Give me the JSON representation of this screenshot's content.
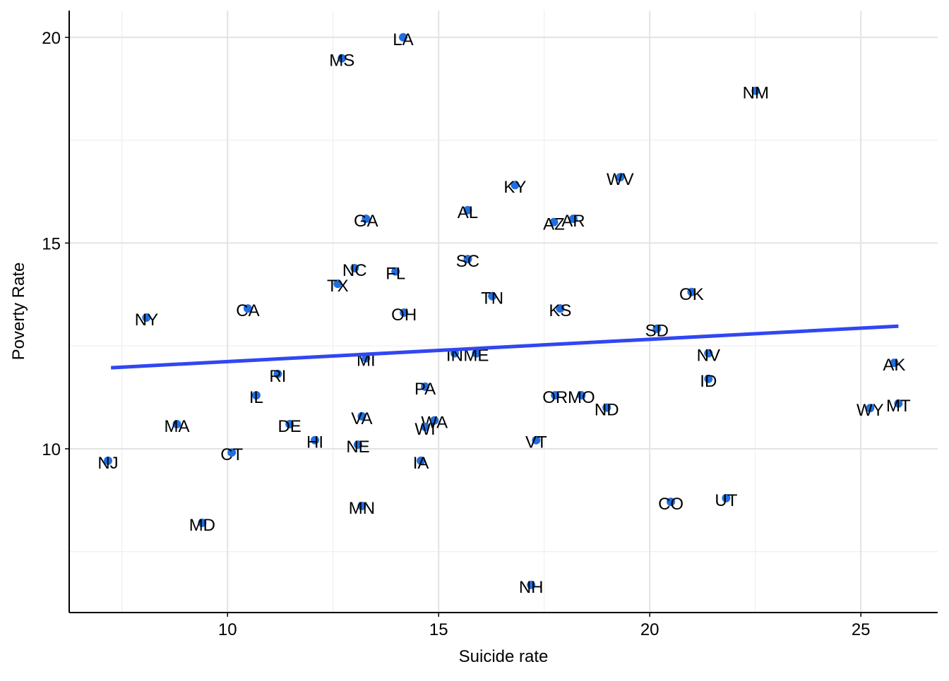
{
  "chart_data": {
    "type": "scatter",
    "x_label": "Suicide rate",
    "y_label": "Poverty Rate",
    "xlim": [
      6.25,
      26.82
    ],
    "ylim": [
      6.02,
      20.65
    ],
    "xticks": [
      10,
      15,
      20,
      25
    ],
    "yticks": [
      10,
      15,
      20
    ],
    "x_minor_grid": [
      7.5,
      12.5,
      17.5,
      22.5
    ],
    "y_minor_grid": [
      7.5,
      12.5,
      17.5
    ],
    "grid": true,
    "color": "#1f6fe0",
    "labels": [
      "LA",
      "MS",
      "NM",
      "WV",
      "KY",
      "AL",
      "AR",
      "AZ",
      "GA",
      "SC",
      "NC",
      "FL",
      "TX",
      "TN",
      "OK",
      "CA",
      "KS",
      "OH",
      "NY",
      "SD",
      "IN",
      "ME",
      "NV",
      "MI",
      "AK",
      "RI",
      "ID",
      "PA",
      "IL",
      "OR",
      "MO",
      "MT",
      "ND",
      "WY",
      "MA",
      "DE",
      "VA",
      "WA",
      "WI",
      "HI",
      "NE",
      "VT",
      "CT",
      "NJ",
      "IA",
      "CO",
      "UT",
      "MN",
      "MD",
      "NH"
    ],
    "x": [
      14.16,
      12.71,
      22.51,
      19.3,
      16.81,
      15.69,
      18.19,
      17.73,
      13.28,
      15.69,
      13.01,
      13.98,
      12.61,
      16.27,
      20.99,
      10.48,
      17.88,
      14.18,
      8.08,
      20.17,
      15.38,
      15.89,
      21.39,
      13.28,
      25.79,
      11.19,
      21.39,
      14.68,
      10.68,
      17.76,
      18.38,
      25.89,
      18.98,
      25.22,
      8.8,
      11.47,
      13.18,
      14.9,
      14.68,
      12.07,
      13.09,
      17.31,
      10.1,
      7.17,
      14.58,
      20.5,
      21.81,
      13.18,
      9.4,
      17.19
    ],
    "values": [
      20.0,
      19.49,
      18.7,
      16.6,
      16.41,
      15.8,
      15.59,
      15.51,
      15.59,
      14.61,
      14.39,
      14.31,
      14.01,
      13.71,
      13.81,
      13.41,
      13.41,
      13.31,
      13.19,
      12.92,
      12.32,
      12.32,
      12.32,
      12.2,
      12.09,
      11.82,
      11.7,
      11.51,
      11.3,
      11.3,
      11.3,
      11.1,
      11.0,
      10.99,
      10.6,
      10.6,
      10.79,
      10.69,
      10.53,
      10.21,
      10.1,
      10.21,
      9.91,
      9.71,
      9.71,
      8.71,
      8.8,
      8.61,
      8.2,
      6.69
    ],
    "trend_line": {
      "x": [
        7.24,
        25.89
      ],
      "y": [
        11.97,
        12.98
      ],
      "color": "#3047f2"
    }
  }
}
